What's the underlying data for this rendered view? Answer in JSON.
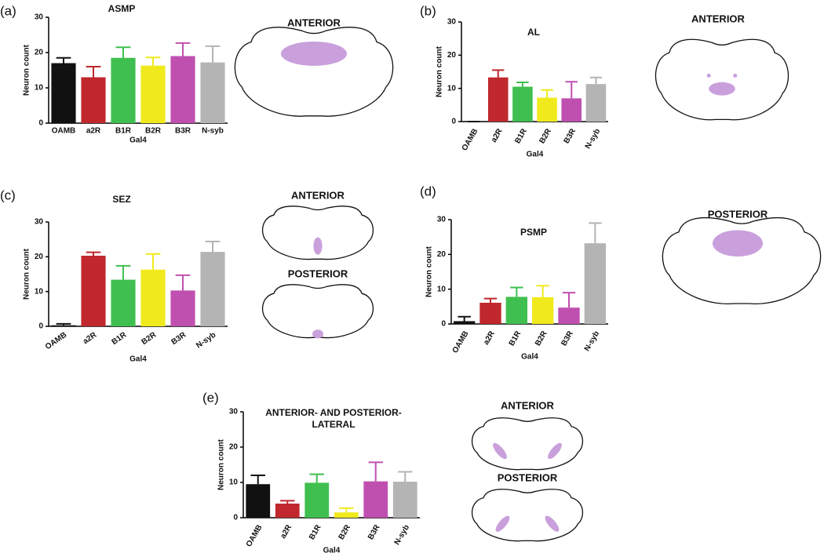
{
  "chart_data": [
    {
      "type": "bar",
      "panel": "(a)",
      "title": [
        "ASMP"
      ],
      "ylabel": "Neuron count",
      "xlabel": "Gal4",
      "categories": [
        "OAMB",
        "a2R",
        "B1R",
        "B2R",
        "B3R",
        "N-syb"
      ],
      "values": [
        17,
        13,
        18.5,
        16.3,
        19,
        17.2
      ],
      "errors": [
        1.5,
        3,
        3,
        2.3,
        3.7,
        4.6
      ],
      "colors": [
        "#111111",
        "#c0282d",
        "#3fbf4f",
        "#f0ea1c",
        "#c050b0",
        "#b4b4b4"
      ],
      "ylim": [
        0,
        30
      ],
      "yticks": [
        0,
        10,
        20,
        30
      ],
      "views": [
        "ANTERIOR"
      ]
    },
    {
      "type": "bar",
      "panel": "(b)",
      "title": [
        "AL"
      ],
      "ylabel": "Neuron count",
      "xlabel": "Gal4",
      "categories": [
        "OAMB",
        "a2R",
        "B1R",
        "B2R",
        "B3R",
        "N-syb"
      ],
      "values": [
        0,
        13.3,
        10.5,
        7.2,
        7,
        11.3
      ],
      "errors": [
        0,
        2.2,
        1.3,
        2.3,
        5,
        2
      ],
      "colors": [
        "#111111",
        "#c0282d",
        "#3fbf4f",
        "#f0ea1c",
        "#c050b0",
        "#b4b4b4"
      ],
      "ylim": [
        0,
        30
      ],
      "yticks": [
        0,
        10,
        20,
        30
      ],
      "views": [
        "ANTERIOR"
      ]
    },
    {
      "type": "bar",
      "panel": "(c)",
      "title": [
        "SEZ"
      ],
      "ylabel": "Neuron count",
      "xlabel": "Gal4",
      "categories": [
        "OAMB",
        "a2R",
        "B1R",
        "B2R",
        "B3R",
        "N-syb"
      ],
      "values": [
        0.3,
        20.3,
        13.4,
        16.3,
        10.3,
        21.4
      ],
      "errors": [
        0.4,
        1,
        4,
        4.5,
        4.4,
        3
      ],
      "colors": [
        "#111111",
        "#c0282d",
        "#3fbf4f",
        "#f0ea1c",
        "#c050b0",
        "#b4b4b4"
      ],
      "ylim": [
        0,
        30
      ],
      "yticks": [
        0,
        10,
        20,
        30
      ],
      "views": [
        "ANTERIOR",
        "POSTERIOR"
      ]
    },
    {
      "type": "bar",
      "panel": "(d)",
      "title": [
        "PSMP"
      ],
      "ylabel": "Neuron count",
      "xlabel": "Gal4",
      "categories": [
        "OAMB",
        "a2R",
        "B1R",
        "B2R",
        "B3R",
        "N-syb"
      ],
      "values": [
        0.8,
        6.1,
        7.8,
        7.7,
        4.7,
        23.2
      ],
      "errors": [
        1.3,
        1.2,
        2.7,
        3.3,
        4.3,
        5.8
      ],
      "colors": [
        "#111111",
        "#c0282d",
        "#3fbf4f",
        "#f0ea1c",
        "#c050b0",
        "#b4b4b4"
      ],
      "ylim": [
        0,
        30
      ],
      "yticks": [
        0,
        10,
        20,
        30
      ],
      "views": [
        "POSTERIOR"
      ]
    },
    {
      "type": "bar",
      "panel": "(e)",
      "title": [
        "ANTERIOR- AND POSTERIOR-",
        "LATERAL"
      ],
      "ylabel": "Neuron count",
      "xlabel": "Gal4",
      "categories": [
        "OAMB",
        "a2R",
        "B1R",
        "B2R",
        "B3R",
        "N-syb"
      ],
      "values": [
        9.5,
        4,
        9.9,
        1.5,
        10.3,
        10.2
      ],
      "errors": [
        2.5,
        0.8,
        2.4,
        1.2,
        5.4,
        2.8
      ],
      "colors": [
        "#111111",
        "#c0282d",
        "#3fbf4f",
        "#f0ea1c",
        "#c050b0",
        "#b4b4b4"
      ],
      "ylim": [
        0,
        30
      ],
      "yticks": [
        0,
        10,
        20,
        30
      ],
      "views": [
        "ANTERIOR",
        "POSTERIOR"
      ]
    }
  ]
}
